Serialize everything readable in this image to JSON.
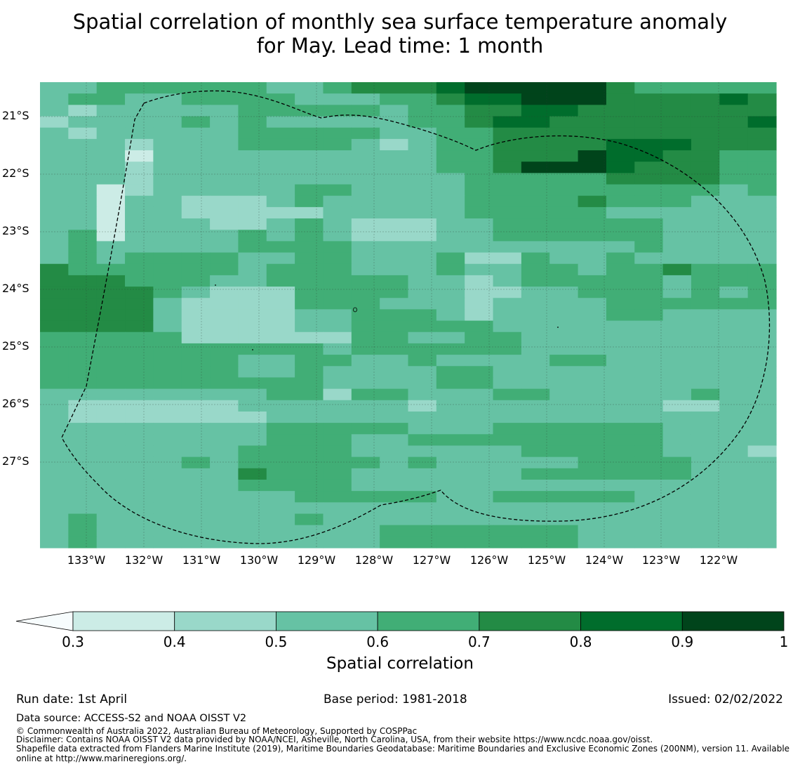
{
  "title": {
    "line1": "Spatial correlation of monthly sea surface temperature anomaly",
    "line2": "for May. Lead time: 1 month"
  },
  "map": {
    "lat_labels": [
      "21°S",
      "22°S",
      "23°S",
      "24°S",
      "25°S",
      "26°S",
      "27°S"
    ],
    "lon_labels": [
      "133°W",
      "132°W",
      "131°W",
      "130°W",
      "129°W",
      "128°W",
      "127°W",
      "126°W",
      "125°W",
      "124°W",
      "123°W",
      "122°W"
    ],
    "grid_values": [
      "55666666556777899999766666",
      "56655666655566788999777787",
      "54555556666656677887777777",
      "45555656555556678877777778",
      "54555556666655667777777777",
      "55545556666545667777888777",
      "55535555555555667779887766",
      "55545555555555667999877766",
      "55545555555555566666777766",
      "55345555566555566666666656",
      "55355444565555566667666555",
      "55355444445555566666555555",
      "55355544565444556666665555",
      "56355556565444556666665555",
      "56555556666555555555565555",
      "56566665566555644655655555",
      "76666665666555655665667666",
      "77766655666665545666665666",
      "77776544466665544556665656",
      "77775444466655545555666666",
      "77775444455666545555665555",
      "77775444455666665555555555",
      "66666444444665566555555555",
      "66666666665666666555555555",
      "66666665566556555566555555",
      "66666665565555665555555555",
      "66666666665555665555555555",
      "55555555664665556655555655",
      "54444445555554555555554455",
      "54444444555555555555555555",
      "55555555666665556666665555",
      "55555555666556666666665555",
      "55555556666555555666665554",
      "55555656666656555556666555",
      "55555557666555555666666555",
      "55555556666555555555555555",
      "55555555566666556666655555",
      "55555555555555555555555555",
      "56555555565555555555555555",
      "56555555555566666665555555",
      "56555555555566666665555555"
    ],
    "grid_lon_range": [
      -133.8,
      -121.0
    ],
    "grid_lat_range": [
      -28.5,
      -20.4
    ],
    "level_colors": [
      "#ccece6",
      "#99d8c9",
      "#66c2a4",
      "#41ae76",
      "#238b45",
      "#006d2c",
      "#00441b"
    ]
  },
  "colorbar": {
    "ticks": [
      "0.3",
      "0.4",
      "0.5",
      "0.6",
      "0.7",
      "0.8",
      "0.9",
      "1"
    ],
    "label": "Spatial correlation",
    "colors": [
      "#ccece6",
      "#99d8c9",
      "#66c2a4",
      "#41ae76",
      "#238b45",
      "#006d2c",
      "#00441b"
    ],
    "extend_color": "#f7fcfd"
  },
  "footer": {
    "run_date": "Run date: 1st April",
    "base_period": "Base period: 1981-2018",
    "issued": "Issued: 02/02/2022",
    "data_source": "Data source: ACCESS-S2 and NOAA OISST V2",
    "copyright": "© Commonwealth of Australia 2022, Australian Bureau of Meteorology, Supported by COSPPac",
    "disclaimer": "Disclaimer: Contains NOAA OISST V2 data provided by NOAA/NCEI, Asheville, North Carolina, USA, from their website https://www.ncdc.noaa.gov/oisst.",
    "shapefile_line1": "Shapefile data extracted from Flanders Marine Institute (2019), Maritime Boundaries Geodatabase: Maritime Boundaries and Exclusive Economic Zones (200NM), version 11. Available",
    "shapefile_line2": "online at http://www.marineregions.org/."
  }
}
